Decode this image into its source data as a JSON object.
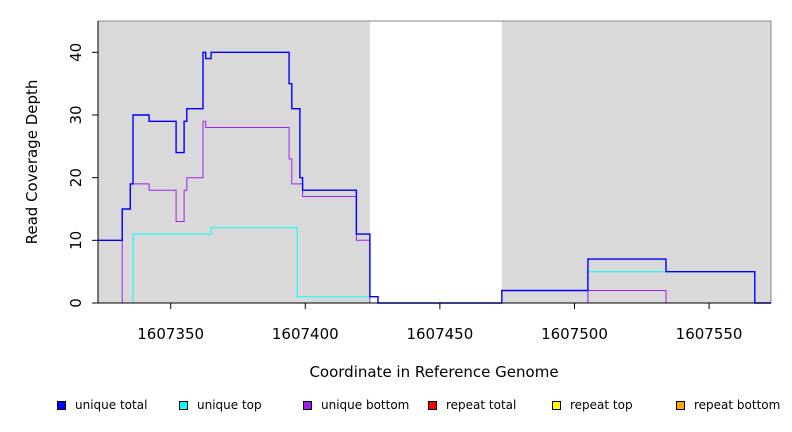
{
  "chart_data": {
    "type": "line",
    "title": "",
    "xlabel": "Coordinate in Reference Genome",
    "ylabel": "Read Coverage Depth",
    "xlim": [
      1607323,
      1607573
    ],
    "ylim": [
      0,
      45
    ],
    "x_ticks": [
      1607350,
      1607400,
      1607450,
      1607500,
      1607550
    ],
    "y_ticks": [
      0,
      10,
      20,
      30,
      40
    ],
    "grid": false,
    "legend_position": "bottom",
    "shaded_regions": [
      {
        "from": 1607323,
        "to": 1607424,
        "color": "#d9d9d9"
      },
      {
        "from": 1607473,
        "to": 1607573,
        "color": "#d9d9d9"
      }
    ],
    "series": [
      {
        "name": "unique total",
        "color": "#0000ff",
        "steps": [
          [
            1607323,
            10
          ],
          [
            1607332,
            15
          ],
          [
            1607335,
            19
          ],
          [
            1607336,
            30
          ],
          [
            1607342,
            29
          ],
          [
            1607352,
            24
          ],
          [
            1607355,
            29
          ],
          [
            1607356,
            31
          ],
          [
            1607362,
            40
          ],
          [
            1607363,
            39
          ],
          [
            1607365,
            40
          ],
          [
            1607394,
            35
          ],
          [
            1607395,
            31
          ],
          [
            1607398,
            20
          ],
          [
            1607399,
            18
          ],
          [
            1607419,
            11
          ],
          [
            1607424,
            1
          ],
          [
            1607427,
            0
          ],
          [
            1607473,
            2
          ],
          [
            1607505,
            7
          ],
          [
            1607534,
            5
          ],
          [
            1607567,
            0
          ],
          [
            1607573,
            0
          ]
        ]
      },
      {
        "name": "unique top",
        "color": "#00ffff",
        "steps": [
          [
            1607323,
            0
          ],
          [
            1607336,
            11
          ],
          [
            1607365,
            12
          ],
          [
            1607397,
            1
          ],
          [
            1607424,
            0
          ],
          [
            1607473,
            0
          ],
          [
            1607505,
            5
          ],
          [
            1607567,
            0
          ],
          [
            1607573,
            0
          ]
        ]
      },
      {
        "name": "unique bottom",
        "color": "#a020f0",
        "steps": [
          [
            1607323,
            0
          ],
          [
            1607332,
            15
          ],
          [
            1607335,
            19
          ],
          [
            1607342,
            18
          ],
          [
            1607352,
            13
          ],
          [
            1607355,
            18
          ],
          [
            1607356,
            20
          ],
          [
            1607362,
            29
          ],
          [
            1607363,
            28
          ],
          [
            1607394,
            23
          ],
          [
            1607395,
            19
          ],
          [
            1607399,
            17
          ],
          [
            1607419,
            10
          ],
          [
            1607424,
            0
          ],
          [
            1607473,
            0
          ],
          [
            1607505,
            2
          ],
          [
            1607534,
            0
          ],
          [
            1607573,
            0
          ]
        ]
      },
      {
        "name": "repeat total",
        "color": "#ff0000",
        "steps": [
          [
            1607323,
            0
          ],
          [
            1607573,
            0
          ]
        ]
      },
      {
        "name": "repeat top",
        "color": "#ffff00",
        "steps": [
          [
            1607323,
            0
          ],
          [
            1607573,
            0
          ]
        ]
      },
      {
        "name": "repeat bottom",
        "color": "#ffa500",
        "steps": [
          [
            1607323,
            0
          ],
          [
            1607424,
            0
          ],
          [
            1607473,
            0
          ],
          [
            1607573,
            0
          ]
        ]
      }
    ]
  },
  "legend": [
    {
      "label": "unique total",
      "color": "#0000ff"
    },
    {
      "label": "unique top",
      "color": "#00ffff"
    },
    {
      "label": "unique bottom",
      "color": "#a020f0"
    },
    {
      "label": "repeat total",
      "color": "#ff0000"
    },
    {
      "label": "repeat top",
      "color": "#ffff00"
    },
    {
      "label": "repeat bottom",
      "color": "#ffa500"
    }
  ]
}
